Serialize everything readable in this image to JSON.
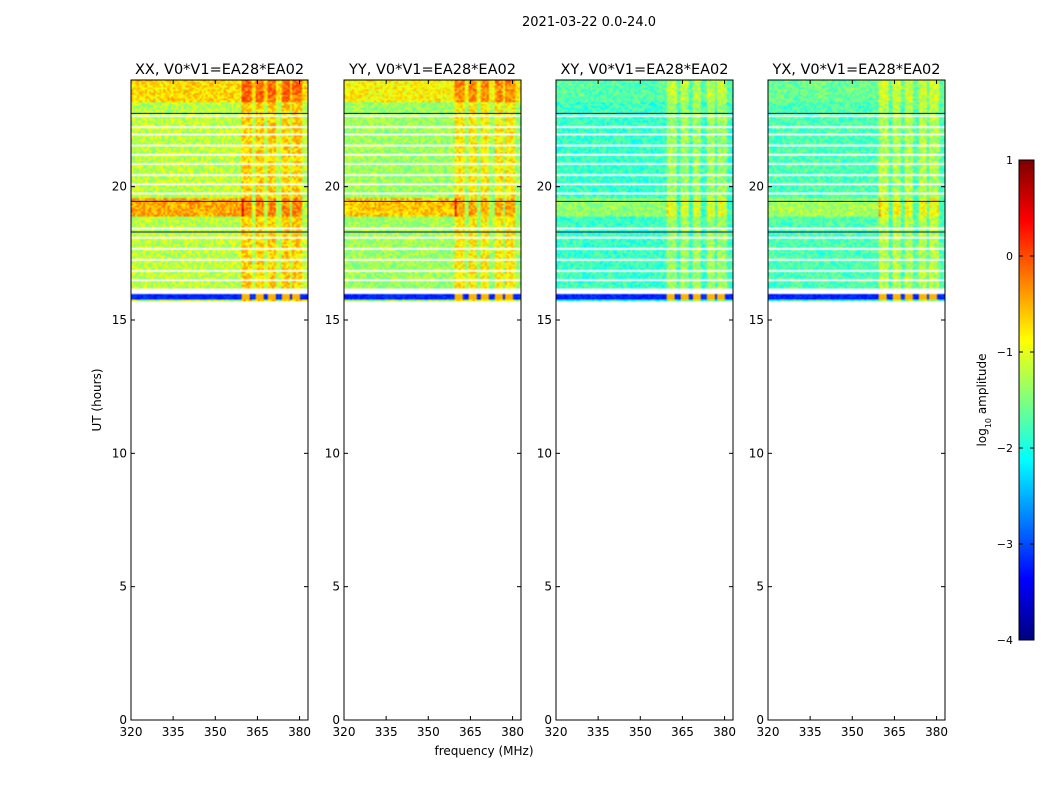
{
  "figure_title": "2021-03-22 0.0-24.0",
  "chart_data": {
    "type": "heatmap",
    "title": "2021-03-22 0.0-24.0",
    "xlabel": "frequency (MHz)",
    "ylabel": "UT (hours)",
    "xlim": [
      320,
      383
    ],
    "ylim": [
      0,
      24
    ],
    "x_ticks": [
      320,
      335,
      350,
      365,
      380
    ],
    "y_ticks": [
      0,
      5,
      10,
      15,
      20
    ],
    "panels": [
      {
        "title": "XX, V0*V1=EA28*EA02",
        "base_level": -1.2,
        "strong_bright": true
      },
      {
        "title": "YY, V0*V1=EA28*EA02",
        "base_level": -1.35,
        "strong_bright": true
      },
      {
        "title": "XY, V0*V1=EA28*EA02",
        "base_level": -1.85,
        "strong_bright": false
      },
      {
        "title": "YX, V0*V1=EA28*EA02",
        "base_level": -1.75,
        "strong_bright": false
      }
    ],
    "data_time_range_hours": [
      15.7,
      24.0
    ],
    "blue_row_hours": [
      15.75,
      15.95
    ],
    "bright_band_hours": [
      18.9,
      19.55
    ],
    "rfi_channels_mhz": [
      361,
      366,
      370,
      375,
      379
    ],
    "colorbar": {
      "label": "log10 amplitude",
      "label_base": "log",
      "label_sub": "10",
      "label_rest": " amplitude",
      "range": [
        -4,
        1
      ],
      "ticks": [
        1,
        0,
        -1,
        -2,
        -3,
        -4
      ],
      "tick_labels": [
        "1",
        "0",
        "−1",
        "−2",
        "−3",
        "−4"
      ],
      "colormap": "jet"
    }
  }
}
